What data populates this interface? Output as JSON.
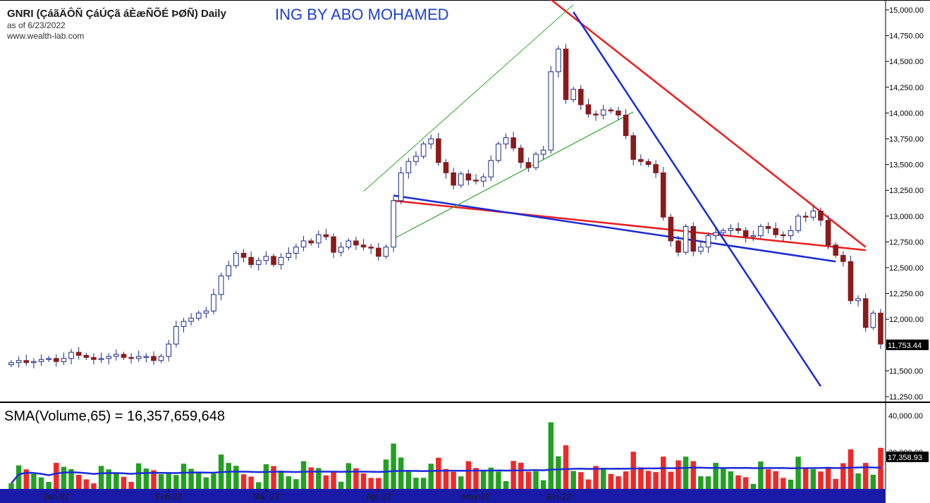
{
  "header": {
    "title": "GNRI (ÇáãÄÔÑ ÇáÚÇã áÈæÑÕÉ ÞØÑ) Daily",
    "as_of": "as of 6/23/2022",
    "site": "www.wealth-lab.com",
    "watermark": "ING BY ABO MOHAMED"
  },
  "colors": {
    "up_candle": "#ffffff",
    "down_candle": "#8b1a1a",
    "candle_outline": "#1a2a8a",
    "vol_up": "#22a022",
    "vol_down": "#f02828",
    "sma_line": "#1a2ad8",
    "trend_red": "#ee1c1c",
    "trend_blue": "#1a2ad8",
    "trend_green": "#2ea82e",
    "x_axis_bar": "#1a1aa8"
  },
  "chart_data": [
    {
      "type": "candlestick",
      "name": "price",
      "y_axis_labels": [
        "15,000.00",
        "14,750.00",
        "14,500.00",
        "14,250.00",
        "14,000.00",
        "13,750.00",
        "13,500.00",
        "13,250.00",
        "13,000.00",
        "12,750.00",
        "12,500.00",
        "12,250.00",
        "12,000.00",
        "11,750.00",
        "11,500.00",
        "11,250.00"
      ],
      "ylim": [
        11250,
        15000
      ],
      "last_value_label": "11,753.44",
      "x_tick_labels": [
        "Jan-22",
        "Feb-22",
        "Mar-22",
        "Apr-22",
        "May-22",
        "Jun-22"
      ],
      "x_tick_index": [
        6,
        21,
        34,
        49,
        62,
        73
      ],
      "close": [
        11580,
        11600,
        11580,
        11590,
        11610,
        11620,
        11590,
        11620,
        11680,
        11650,
        11630,
        11610,
        11620,
        11640,
        11660,
        11630,
        11620,
        11640,
        11640,
        11600,
        11640,
        11760,
        11930,
        11980,
        12010,
        12060,
        12080,
        12240,
        12420,
        12520,
        12640,
        12600,
        12530,
        12570,
        12610,
        12530,
        12600,
        12640,
        12700,
        12760,
        12740,
        12820,
        12800,
        12650,
        12700,
        12760,
        12720,
        12700,
        12690,
        12610,
        12700,
        13150,
        13420,
        13530,
        13580,
        13700,
        13750,
        13520,
        13420,
        13300,
        13410,
        13350,
        13340,
        13380,
        13540,
        13700,
        13760,
        13660,
        13520,
        13470,
        13600,
        13640,
        14400,
        14620,
        14130,
        14230,
        14080,
        13990,
        13980,
        14030,
        14020,
        13980,
        13780,
        13550,
        13530,
        13500,
        13420,
        12990,
        12760,
        12650,
        12900,
        12660,
        12700,
        12810,
        12840,
        12860,
        12880,
        12860,
        12800,
        12810,
        12900,
        12880,
        12820,
        12810,
        12860,
        13000,
        12990,
        13050,
        12960,
        12720,
        12620,
        12560,
        12180,
        12200,
        11920,
        12060,
        11760
      ],
      "fit_ranges_note": "values read from chart"
    },
    {
      "type": "bar",
      "name": "volume",
      "indicator_label": "SMA(Volume,65) = 16,357,659,648",
      "y_axis_labels": [
        "40,000.00",
        "30,000.00"
      ],
      "last_value_label": "17,358.93",
      "ylim": [
        10000,
        43000
      ]
    },
    {
      "type": "trendlines",
      "name": "drawn lines",
      "lines": [
        {
          "color_key": "trend_red",
          "from_price": 13150,
          "to_price": 12670,
          "from_index": 51,
          "to_index": 114
        },
        {
          "color_key": "trend_red",
          "from_price": 15100,
          "to_price": 12700,
          "from_index": 72,
          "to_index": 114
        },
        {
          "color_key": "trend_blue",
          "from_price": 13200,
          "to_price": 12560,
          "from_index": 51,
          "to_index": 110
        },
        {
          "color_key": "trend_blue",
          "from_price": 14980,
          "to_price": 11350,
          "from_index": 75,
          "to_index": 108
        }
      ]
    }
  ]
}
